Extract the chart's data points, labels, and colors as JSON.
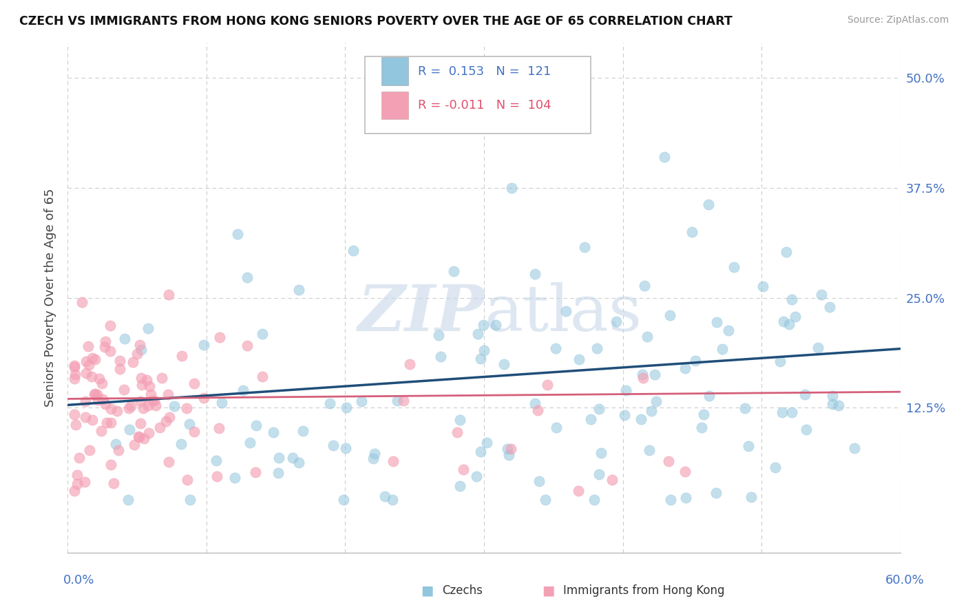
{
  "title": "CZECH VS IMMIGRANTS FROM HONG KONG SENIORS POVERTY OVER THE AGE OF 65 CORRELATION CHART",
  "source": "Source: ZipAtlas.com",
  "ylabel": "Seniors Poverty Over the Age of 65",
  "xlim": [
    0.0,
    0.6
  ],
  "ylim": [
    -0.04,
    0.54
  ],
  "yticks": [
    0.0,
    0.125,
    0.25,
    0.375,
    0.5
  ],
  "ytick_labels_right": [
    "",
    "12.5%",
    "25.0%",
    "37.5%",
    "50.0%"
  ],
  "czechs_color": "#92c5de",
  "hk_color": "#f4a0b4",
  "trend_czech_color": "#1f4e79",
  "trend_hk_color": "#d45f7a",
  "grid_color": "#cccccc",
  "watermark_color": "#c8d8e8",
  "legend_r_czech": "R =  0.153",
  "legend_n_czech": "N =  121",
  "legend_r_hk": "R = -0.011",
  "legend_n_hk": "N =  104",
  "label_color_blue": "#4472c4",
  "label_color_pink": "#e05070",
  "bottom_label_czechs": "Czechs",
  "bottom_label_hk": "Immigrants from Hong Kong"
}
